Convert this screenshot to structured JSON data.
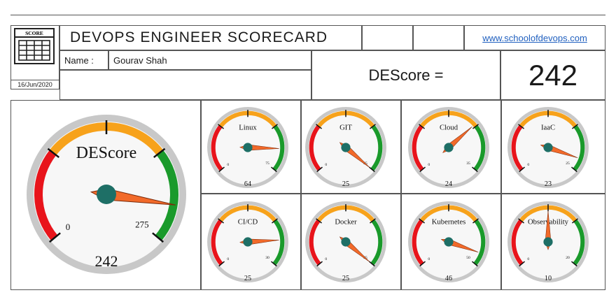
{
  "header": {
    "logo_text": "SCORE",
    "title": "DEVOPS ENGINEER SCORECARD",
    "website": "www.schoolofdevops.com",
    "name_label": "Name :",
    "name_value": "Gourav Shah",
    "date": "16/Jun/2020",
    "score_label": "DEScore =",
    "score_value": "242"
  },
  "gauges": [
    {
      "id": "descore",
      "label": "DEScore",
      "value": 242,
      "max": 275,
      "value_text": "242",
      "min_text": "0",
      "max_text": "275"
    },
    {
      "id": "linux",
      "label": "Linux",
      "value": 64,
      "max": 75,
      "value_text": "64",
      "min_text": "0",
      "max_text": "75"
    },
    {
      "id": "git",
      "label": "GIT",
      "value": 25,
      "max": 25,
      "value_text": "25",
      "min_text": "0",
      "max_text": "25"
    },
    {
      "id": "cloud",
      "label": "Cloud",
      "value": 24,
      "max": 35,
      "value_text": "24",
      "min_text": "0",
      "max_text": "35"
    },
    {
      "id": "iaac",
      "label": "IaaC",
      "value": 23,
      "max": 25,
      "value_text": "23",
      "min_text": "0",
      "max_text": "25"
    },
    {
      "id": "cicd",
      "label": "CI/CD",
      "value": 25,
      "max": 30,
      "value_text": "25",
      "min_text": "0",
      "max_text": "30"
    },
    {
      "id": "docker",
      "label": "Docker",
      "value": 25,
      "max": 25,
      "value_text": "25",
      "min_text": "0",
      "max_text": "25"
    },
    {
      "id": "kubernetes",
      "label": "Kubernetes",
      "value": 46,
      "max": 50,
      "value_text": "46",
      "min_text": "0",
      "max_text": "50"
    },
    {
      "id": "observability",
      "label": "Observability",
      "value": 10,
      "max": 20,
      "value_text": "10",
      "min_text": "0",
      "max_text": "20"
    }
  ],
  "colors": {
    "red": "#e8141b",
    "orange": "#f7a21b",
    "green": "#1a9a2b",
    "needle": "#f26a2a",
    "hub": "#1e6f66"
  }
}
